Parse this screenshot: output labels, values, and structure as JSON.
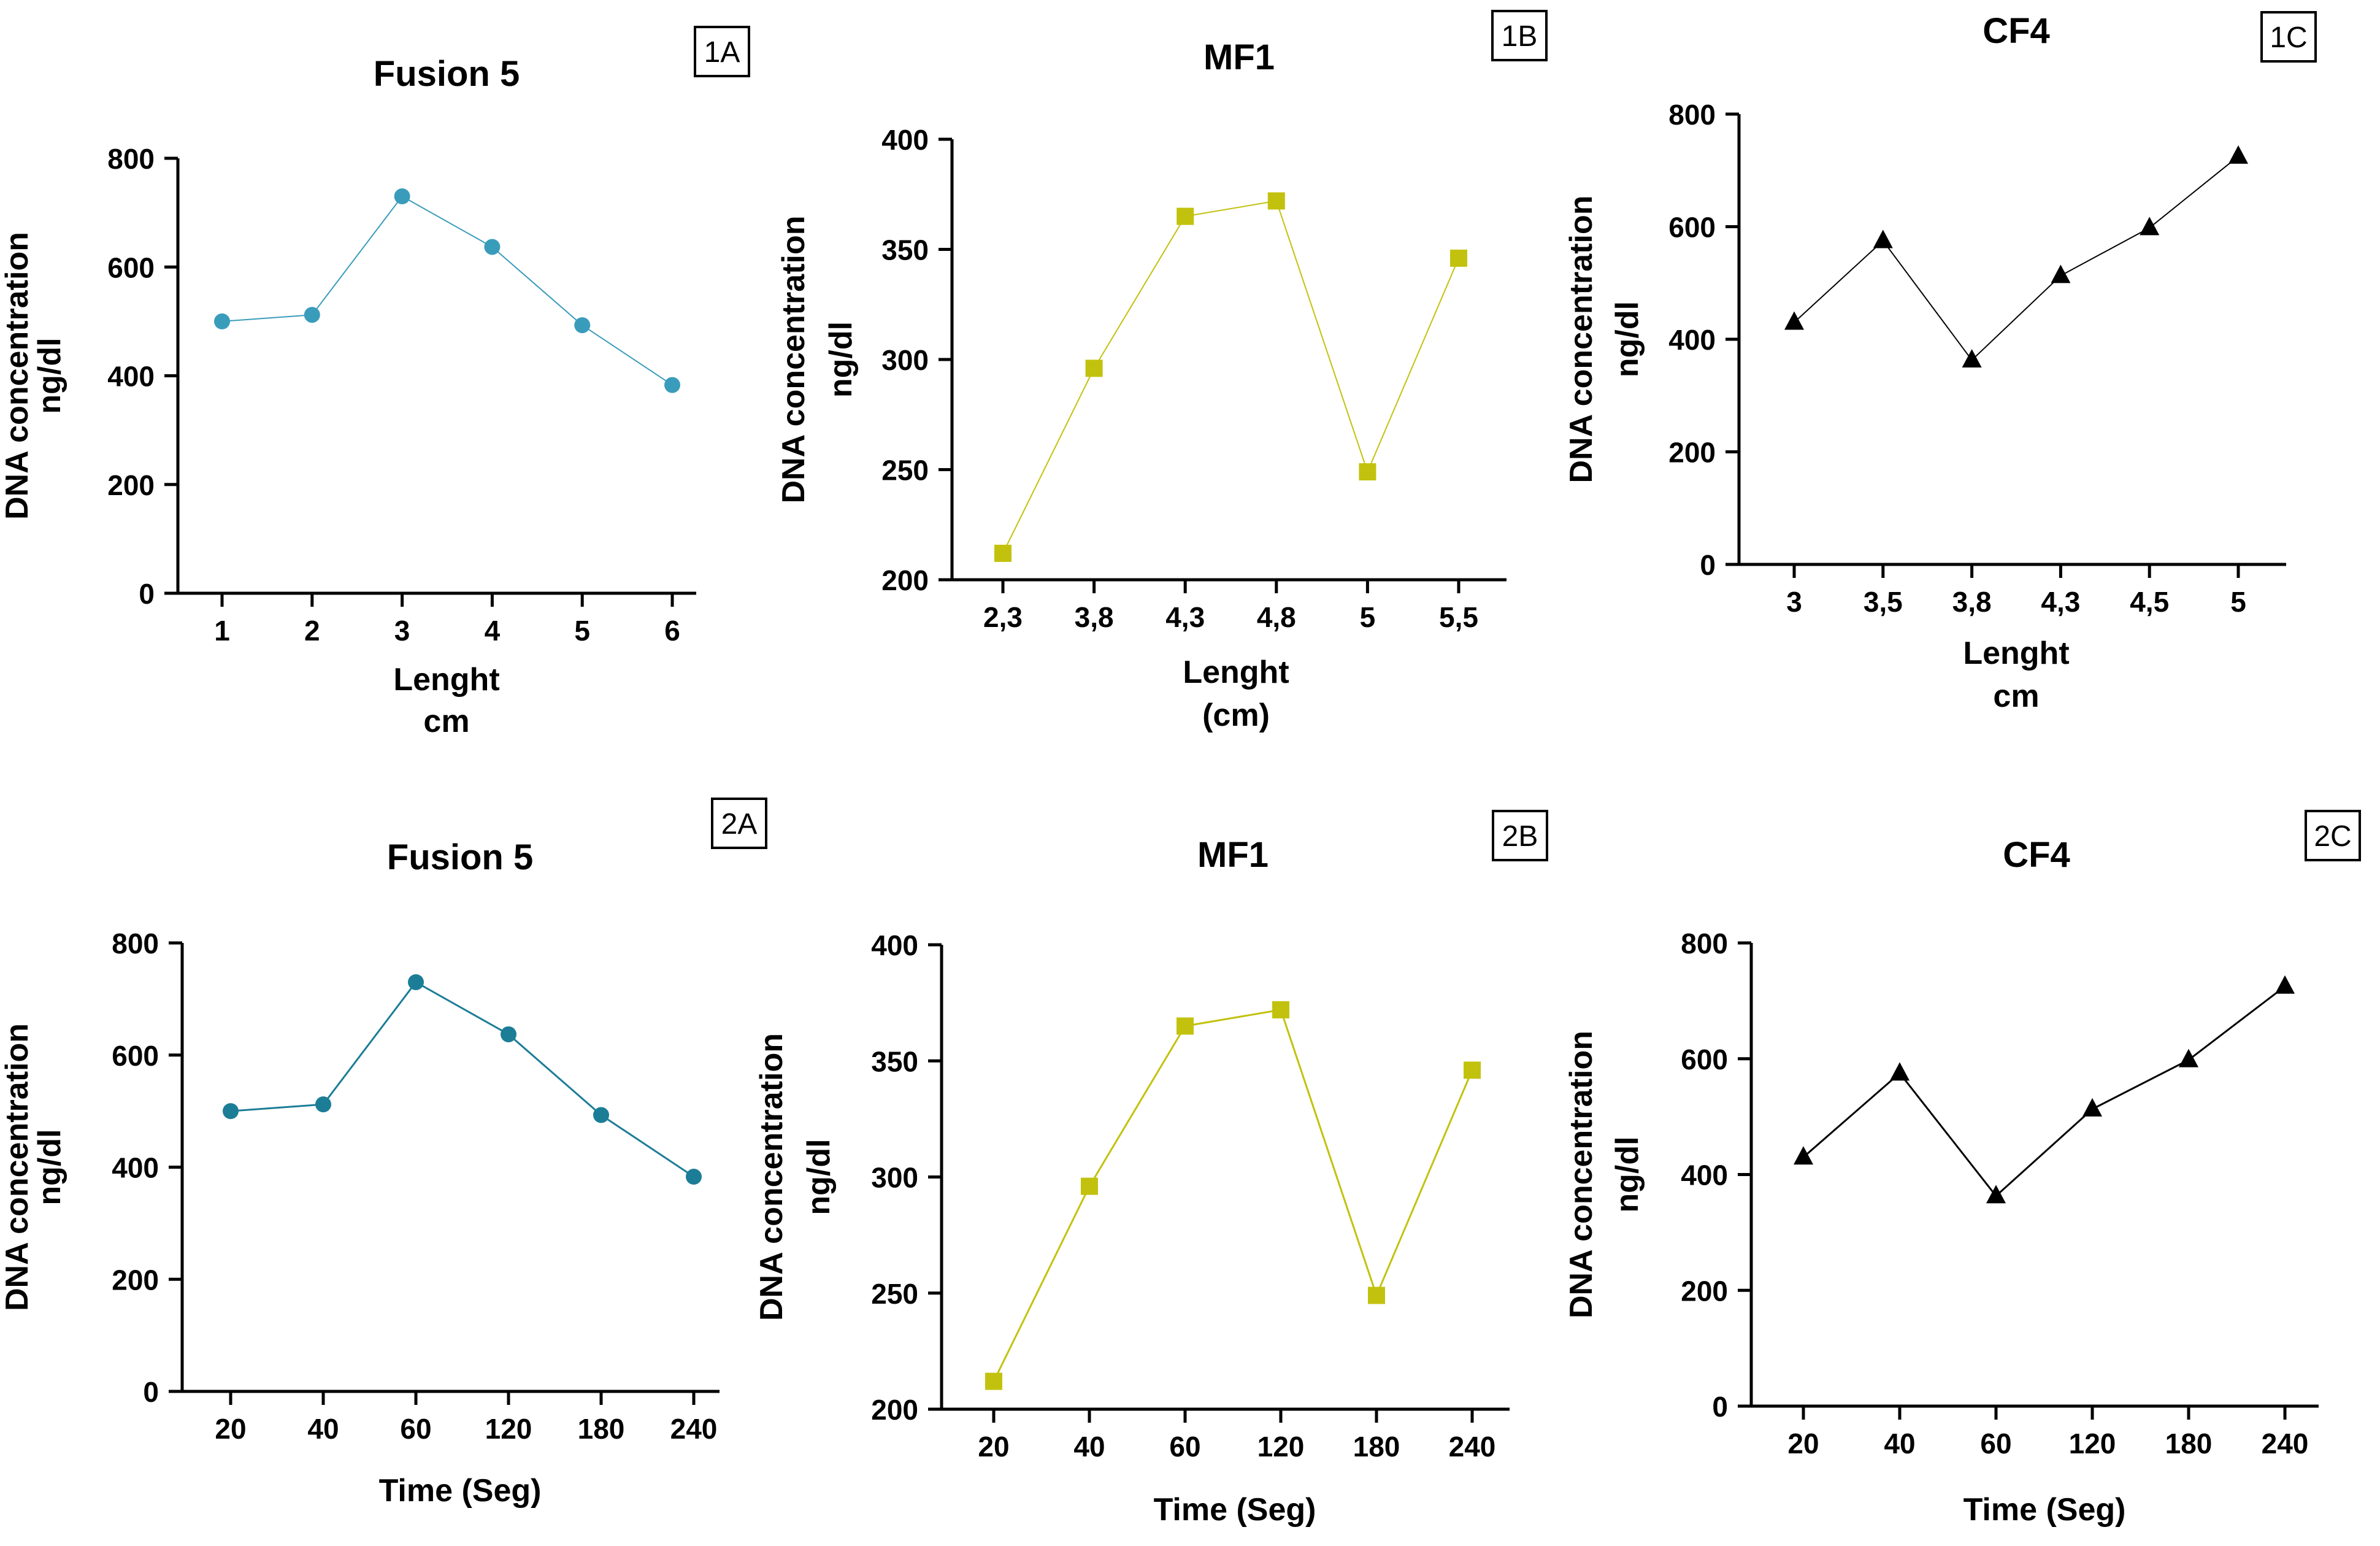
{
  "chart_data": [
    {
      "id": "1A",
      "panel_label": "1A",
      "type": "line",
      "title": "Fusion 5",
      "xlabel": [
        "Lenght",
        "cm"
      ],
      "ylabel": [
        "DNA concentration",
        "ng/dl"
      ],
      "categories": [
        "1",
        "2",
        "3",
        "4",
        "5",
        "6"
      ],
      "values": [
        500,
        512,
        730,
        637,
        493,
        383
      ],
      "yticks": [
        0,
        200,
        400,
        600,
        800
      ],
      "ylim": [
        0,
        800
      ],
      "marker": "circle",
      "color": "#3a9cbb",
      "line_width": 2,
      "grid": false,
      "legend": "none"
    },
    {
      "id": "1B",
      "panel_label": "1B",
      "type": "line",
      "title": "MF1",
      "xlabel": [
        "Lenght",
        "(cm)"
      ],
      "ylabel": [
        "DNA concentration",
        "ng/dl"
      ],
      "categories": [
        "2,3",
        "3,8",
        "4,3",
        "4,8",
        "5",
        "5,5"
      ],
      "values": [
        212,
        296,
        365,
        372,
        249,
        346
      ],
      "yticks": [
        200,
        250,
        300,
        350,
        400
      ],
      "ylim": [
        200,
        400
      ],
      "marker": "square",
      "color": "#c2c20e",
      "line_width": 2,
      "grid": false,
      "legend": "none"
    },
    {
      "id": "1C",
      "panel_label": "1C",
      "type": "line",
      "title": "CF4",
      "xlabel": [
        "Lenght",
        "cm"
      ],
      "ylabel": [
        "DNA concentration",
        "ng/dl"
      ],
      "categories": [
        "3",
        "3,5",
        "3,8",
        "4,3",
        "4,5",
        "5"
      ],
      "values": [
        430,
        575,
        363,
        513,
        598,
        725
      ],
      "yticks": [
        0,
        200,
        400,
        600,
        800
      ],
      "ylim": [
        0,
        800
      ],
      "marker": "triangle",
      "color": "#000000",
      "line_width": 2,
      "grid": false,
      "legend": "none"
    },
    {
      "id": "2A",
      "panel_label": "2A",
      "type": "line",
      "title": "Fusion 5",
      "xlabel": [
        "Time (Seg)"
      ],
      "ylabel": [
        "DNA concentration",
        "ng/dl"
      ],
      "categories": [
        "20",
        "40",
        "60",
        "120",
        "180",
        "240"
      ],
      "values": [
        500,
        512,
        730,
        637,
        493,
        383
      ],
      "yticks": [
        0,
        200,
        400,
        600,
        800
      ],
      "ylim": [
        0,
        800
      ],
      "marker": "circle",
      "color": "#1c7d97",
      "line_width": 3,
      "grid": false,
      "legend": "none"
    },
    {
      "id": "2B",
      "panel_label": "2B",
      "type": "line",
      "title": "MF1",
      "xlabel": [
        "Time (Seg)"
      ],
      "ylabel": [
        "DNA concentration",
        "ng/dl"
      ],
      "categories": [
        "20",
        "40",
        "60",
        "120",
        "180",
        "240"
      ],
      "values": [
        212,
        296,
        365,
        372,
        249,
        346
      ],
      "yticks": [
        200,
        250,
        300,
        350,
        400
      ],
      "ylim": [
        200,
        400
      ],
      "marker": "square",
      "color": "#c2c20e",
      "line_width": 3,
      "grid": false,
      "legend": "none"
    },
    {
      "id": "2C",
      "panel_label": "2C",
      "type": "line",
      "title": "CF4",
      "xlabel": [
        "Time (Seg)"
      ],
      "ylabel": [
        "DNA concentration",
        "ng/dl"
      ],
      "categories": [
        "20",
        "40",
        "60",
        "120",
        "180",
        "240"
      ],
      "values": [
        430,
        575,
        363,
        513,
        598,
        725
      ],
      "yticks": [
        0,
        200,
        400,
        600,
        800
      ],
      "ylim": [
        0,
        800
      ],
      "marker": "triangle",
      "color": "#000000",
      "line_width": 3,
      "grid": false,
      "legend": "none"
    }
  ]
}
